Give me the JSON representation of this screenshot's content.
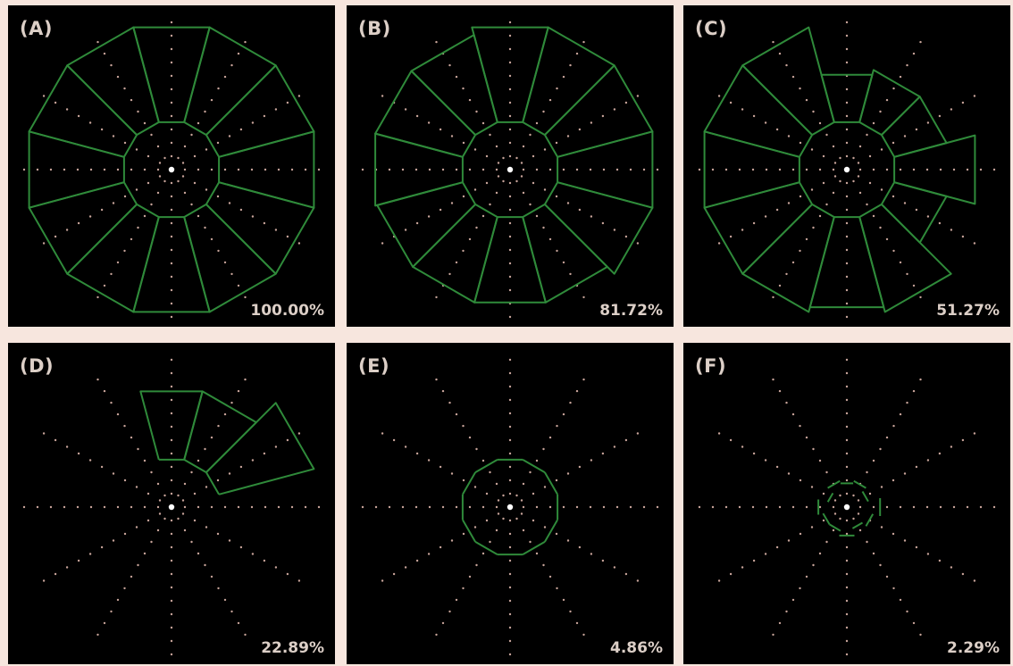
{
  "figure": {
    "colors": {
      "background": "#000000",
      "outline": "#2f8a3a",
      "dots": "#c8a49a",
      "text": "#dccfc7",
      "frame": "#f7e6de"
    },
    "panels": [
      {
        "label": "(A)",
        "value": "100.00%",
        "inner": [
          1,
          1,
          1,
          1,
          1,
          1,
          1,
          1,
          1,
          1,
          1,
          1
        ],
        "outer": [
          1,
          1,
          1,
          1,
          1,
          1,
          1,
          1,
          1,
          1,
          1,
          1
        ]
      },
      {
        "label": "(B)",
        "value": "81.72%",
        "inner": [
          1,
          1,
          1,
          1,
          1,
          1,
          1,
          1,
          1,
          1,
          1,
          1
        ],
        "outer": [
          1,
          1,
          1,
          1,
          0.92,
          0.92,
          0.92,
          0.9,
          0.9,
          0.9,
          0.9,
          1
        ]
      },
      {
        "label": "(C)",
        "value": "51.27%",
        "inner": [
          1,
          1,
          1,
          1,
          1,
          1,
          1,
          1,
          1,
          1,
          1,
          1
        ],
        "outer": [
          0.85,
          0.55,
          0.55,
          0.5,
          1,
          1,
          1,
          1,
          1,
          0.95,
          1,
          0.55
        ]
      },
      {
        "label": "(D)",
        "value": "22.89%",
        "inner": [
          0,
          1,
          1,
          1,
          0,
          0,
          0,
          0,
          0,
          0,
          0,
          0
        ],
        "outer": [
          0,
          1,
          0.72,
          0.72,
          0,
          0,
          0,
          0,
          0,
          0,
          0,
          0
        ]
      },
      {
        "label": "(E)",
        "value": "4.86%",
        "inner": [
          1,
          1,
          1,
          1,
          1,
          1,
          1,
          1,
          1,
          1,
          1,
          1
        ],
        "outer": [
          0,
          0,
          0,
          0,
          0,
          0,
          0,
          0,
          0,
          0,
          0,
          0
        ]
      },
      {
        "label": "(F)",
        "value": "2.29%",
        "inner": [
          0.7,
          0.45,
          0.55,
          0.5,
          0.55,
          0.4,
          0.6,
          0.5,
          0.5,
          0.6,
          0.45,
          0.55
        ],
        "outer": [
          0,
          0,
          0,
          0,
          0,
          0,
          0,
          0,
          0,
          0,
          0,
          0
        ]
      }
    ]
  }
}
